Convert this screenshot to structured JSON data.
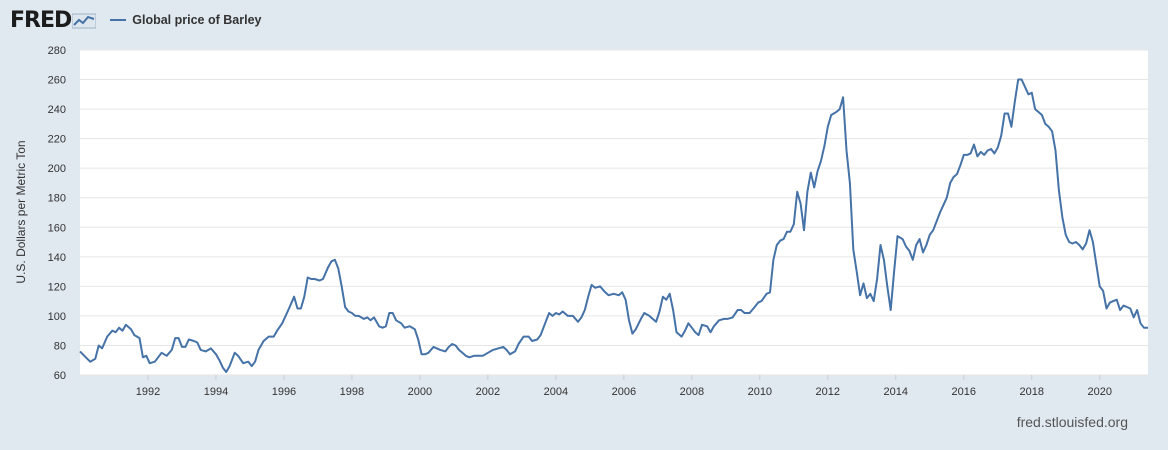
{
  "brand": {
    "logo_text": "FRED",
    "icon": "line-chart-icon"
  },
  "colors": {
    "series": "#4572a7",
    "plot_bg": "#ffffff",
    "page_bg": "#e1e9f0",
    "grid": "#e6e6e6"
  },
  "source_text": "fred.stlouisfed.org",
  "chart_data": {
    "type": "line",
    "title": "",
    "xlabel": "",
    "ylabel": "U.S. Dollars per Metric Ton",
    "xlim": [
      1990.0,
      2021.42
    ],
    "ylim": [
      60,
      280
    ],
    "yticks": [
      60,
      80,
      100,
      120,
      140,
      160,
      180,
      200,
      220,
      240,
      260,
      280
    ],
    "xticks": [
      1992,
      1994,
      1996,
      1998,
      2000,
      2002,
      2004,
      2006,
      2008,
      2010,
      2012,
      2014,
      2016,
      2018,
      2020
    ],
    "grid": true,
    "legend": "top-left",
    "series": [
      {
        "name": "Global price of Barley",
        "points": [
          [
            1990.0,
            76
          ],
          [
            1990.17,
            72
          ],
          [
            1990.3,
            69
          ],
          [
            1990.45,
            71
          ],
          [
            1990.55,
            80
          ],
          [
            1990.65,
            78
          ],
          [
            1990.8,
            86
          ],
          [
            1990.95,
            90
          ],
          [
            1991.05,
            89
          ],
          [
            1991.15,
            92
          ],
          [
            1991.25,
            90
          ],
          [
            1991.35,
            94
          ],
          [
            1991.5,
            91
          ],
          [
            1991.6,
            87
          ],
          [
            1991.75,
            85
          ],
          [
            1991.85,
            72
          ],
          [
            1991.95,
            73
          ],
          [
            1992.05,
            68
          ],
          [
            1992.2,
            69
          ],
          [
            1992.4,
            75
          ],
          [
            1992.55,
            73
          ],
          [
            1992.7,
            77
          ],
          [
            1992.8,
            85
          ],
          [
            1992.9,
            85
          ],
          [
            1993.0,
            79
          ],
          [
            1993.1,
            79
          ],
          [
            1993.2,
            84
          ],
          [
            1993.35,
            83
          ],
          [
            1993.45,
            82
          ],
          [
            1993.55,
            77
          ],
          [
            1993.7,
            76
          ],
          [
            1993.85,
            78
          ],
          [
            1994.0,
            74
          ],
          [
            1994.1,
            70
          ],
          [
            1994.2,
            65
          ],
          [
            1994.3,
            62
          ],
          [
            1994.4,
            66
          ],
          [
            1994.55,
            75
          ],
          [
            1994.65,
            73
          ],
          [
            1994.8,
            68
          ],
          [
            1994.95,
            69
          ],
          [
            1995.05,
            66
          ],
          [
            1995.15,
            69
          ],
          [
            1995.25,
            77
          ],
          [
            1995.4,
            83
          ],
          [
            1995.55,
            86
          ],
          [
            1995.7,
            86
          ],
          [
            1995.8,
            90
          ],
          [
            1995.95,
            95
          ],
          [
            1996.05,
            100
          ],
          [
            1996.15,
            105
          ],
          [
            1996.3,
            113
          ],
          [
            1996.4,
            105
          ],
          [
            1996.5,
            105
          ],
          [
            1996.6,
            113
          ],
          [
            1996.7,
            126
          ],
          [
            1996.8,
            125
          ],
          [
            1996.9,
            125
          ],
          [
            1997.05,
            124
          ],
          [
            1997.15,
            125
          ],
          [
            1997.3,
            133
          ],
          [
            1997.4,
            137
          ],
          [
            1997.5,
            138
          ],
          [
            1997.6,
            132
          ],
          [
            1997.7,
            120
          ],
          [
            1997.8,
            106
          ],
          [
            1997.9,
            103
          ],
          [
            1998.0,
            102
          ],
          [
            1998.1,
            100
          ],
          [
            1998.2,
            100
          ],
          [
            1998.35,
            98
          ],
          [
            1998.45,
            99
          ],
          [
            1998.55,
            97
          ],
          [
            1998.65,
            99
          ],
          [
            1998.8,
            93
          ],
          [
            1998.9,
            92
          ],
          [
            1999.0,
            93
          ],
          [
            1999.1,
            102
          ],
          [
            1999.2,
            102
          ],
          [
            1999.3,
            97
          ],
          [
            1999.45,
            95
          ],
          [
            1999.55,
            92
          ],
          [
            1999.7,
            93
          ],
          [
            1999.85,
            91
          ],
          [
            1999.95,
            84
          ],
          [
            2000.05,
            74
          ],
          [
            2000.15,
            74
          ],
          [
            2000.25,
            75
          ],
          [
            2000.4,
            79
          ],
          [
            2000.5,
            78
          ],
          [
            2000.6,
            77
          ],
          [
            2000.75,
            76
          ],
          [
            2000.85,
            79
          ],
          [
            2000.95,
            81
          ],
          [
            2001.05,
            80
          ],
          [
            2001.15,
            77
          ],
          [
            2001.25,
            75
          ],
          [
            2001.35,
            73
          ],
          [
            2001.45,
            72
          ],
          [
            2001.6,
            73
          ],
          [
            2001.75,
            73
          ],
          [
            2001.85,
            73
          ],
          [
            2002.0,
            75
          ],
          [
            2002.15,
            77
          ],
          [
            2002.3,
            78
          ],
          [
            2002.45,
            79
          ],
          [
            2002.55,
            77
          ],
          [
            2002.65,
            74
          ],
          [
            2002.8,
            76
          ],
          [
            2002.9,
            81
          ],
          [
            2003.05,
            86
          ],
          [
            2003.2,
            86
          ],
          [
            2003.3,
            83
          ],
          [
            2003.45,
            84
          ],
          [
            2003.55,
            87
          ],
          [
            2003.7,
            96
          ],
          [
            2003.8,
            102
          ],
          [
            2003.9,
            100
          ],
          [
            2004.0,
            102
          ],
          [
            2004.1,
            101
          ],
          [
            2004.2,
            103
          ],
          [
            2004.35,
            100
          ],
          [
            2004.5,
            100
          ],
          [
            2004.65,
            96
          ],
          [
            2004.75,
            99
          ],
          [
            2004.85,
            104
          ],
          [
            2004.95,
            113
          ],
          [
            2005.05,
            121
          ],
          [
            2005.15,
            119
          ],
          [
            2005.3,
            120
          ],
          [
            2005.45,
            116
          ],
          [
            2005.55,
            114
          ],
          [
            2005.7,
            115
          ],
          [
            2005.85,
            114
          ],
          [
            2005.95,
            116
          ],
          [
            2006.05,
            111
          ],
          [
            2006.15,
            97
          ],
          [
            2006.25,
            88
          ],
          [
            2006.35,
            91
          ],
          [
            2006.5,
            98
          ],
          [
            2006.6,
            102
          ],
          [
            2006.75,
            100
          ],
          [
            2006.85,
            98
          ],
          [
            2006.95,
            96
          ],
          [
            2007.05,
            103
          ],
          [
            2007.15,
            113
          ],
          [
            2007.25,
            111
          ],
          [
            2007.35,
            115
          ],
          [
            2007.45,
            104
          ],
          [
            2007.55,
            89
          ],
          [
            2007.7,
            86
          ],
          [
            2007.8,
            90
          ],
          [
            2007.9,
            95
          ],
          [
            2008.0,
            92
          ],
          [
            2008.1,
            89
          ],
          [
            2008.2,
            87
          ],
          [
            2008.3,
            94
          ],
          [
            2008.45,
            93
          ],
          [
            2008.55,
            89
          ],
          [
            2008.65,
            93
          ],
          [
            2008.8,
            97
          ],
          [
            2008.95,
            98
          ],
          [
            2009.05,
            98
          ],
          [
            2009.2,
            99
          ],
          [
            2009.35,
            104
          ],
          [
            2009.45,
            104
          ],
          [
            2009.55,
            102
          ],
          [
            2009.7,
            102
          ],
          [
            2009.85,
            106
          ],
          [
            2009.95,
            109
          ],
          [
            2010.05,
            110
          ],
          [
            2010.2,
            115
          ],
          [
            2010.3,
            116
          ],
          [
            2010.4,
            138
          ],
          [
            2010.5,
            148
          ],
          [
            2010.6,
            151
          ],
          [
            2010.7,
            152
          ],
          [
            2010.8,
            157
          ],
          [
            2010.9,
            157
          ],
          [
            2011.0,
            162
          ],
          [
            2011.1,
            184
          ],
          [
            2011.2,
            176
          ],
          [
            2011.3,
            158
          ],
          [
            2011.4,
            184
          ],
          [
            2011.5,
            197
          ],
          [
            2011.6,
            187
          ],
          [
            2011.7,
            198
          ],
          [
            2011.8,
            205
          ],
          [
            2011.9,
            215
          ],
          [
            2012.0,
            228
          ],
          [
            2012.1,
            236
          ],
          [
            2012.25,
            238
          ],
          [
            2012.35,
            240
          ],
          [
            2012.45,
            248
          ],
          [
            2012.55,
            212
          ],
          [
            2012.65,
            190
          ],
          [
            2012.75,
            145
          ],
          [
            2012.85,
            130
          ],
          [
            2012.95,
            114
          ],
          [
            2013.05,
            122
          ],
          [
            2013.15,
            112
          ],
          [
            2013.25,
            115
          ],
          [
            2013.35,
            110
          ],
          [
            2013.45,
            125
          ],
          [
            2013.55,
            148
          ],
          [
            2013.65,
            138
          ],
          [
            2013.75,
            120
          ],
          [
            2013.85,
            104
          ],
          [
            2013.95,
            130
          ],
          [
            2014.05,
            154
          ],
          [
            2014.2,
            152
          ],
          [
            2014.3,
            147
          ],
          [
            2014.4,
            144
          ],
          [
            2014.5,
            138
          ],
          [
            2014.6,
            148
          ],
          [
            2014.7,
            152
          ],
          [
            2014.8,
            143
          ],
          [
            2014.9,
            148
          ],
          [
            2015.0,
            155
          ],
          [
            2015.1,
            158
          ],
          [
            2015.2,
            164
          ],
          [
            2015.3,
            170
          ],
          [
            2015.4,
            175
          ],
          [
            2015.5,
            180
          ],
          [
            2015.6,
            190
          ],
          [
            2015.7,
            194
          ],
          [
            2015.8,
            196
          ],
          [
            2015.9,
            202
          ],
          [
            2016.0,
            209
          ],
          [
            2016.1,
            209
          ],
          [
            2016.2,
            210
          ],
          [
            2016.3,
            216
          ],
          [
            2016.4,
            208
          ],
          [
            2016.5,
            211
          ],
          [
            2016.6,
            209
          ],
          [
            2016.7,
            212
          ],
          [
            2016.8,
            213
          ],
          [
            2016.9,
            210
          ],
          [
            2017.0,
            214
          ],
          [
            2017.1,
            222
          ],
          [
            2017.2,
            237
          ],
          [
            2017.3,
            237
          ],
          [
            2017.4,
            228
          ],
          [
            2017.5,
            245
          ],
          [
            2017.6,
            260
          ],
          [
            2017.7,
            260
          ],
          [
            2017.8,
            255
          ],
          [
            2017.9,
            250
          ],
          [
            2018.0,
            251
          ],
          [
            2018.1,
            240
          ],
          [
            2018.2,
            238
          ],
          [
            2018.3,
            236
          ],
          [
            2018.4,
            230
          ],
          [
            2018.5,
            228
          ],
          [
            2018.6,
            225
          ],
          [
            2018.7,
            212
          ],
          [
            2018.8,
            185
          ],
          [
            2018.9,
            167
          ],
          [
            2019.0,
            155
          ],
          [
            2019.1,
            150
          ],
          [
            2019.2,
            149
          ],
          [
            2019.3,
            150
          ],
          [
            2019.4,
            148
          ],
          [
            2019.5,
            145
          ],
          [
            2019.6,
            149
          ],
          [
            2019.7,
            158
          ],
          [
            2019.8,
            150
          ],
          [
            2019.9,
            135
          ],
          [
            2020.0,
            120
          ],
          [
            2020.1,
            117
          ],
          [
            2020.2,
            105
          ],
          [
            2020.3,
            109
          ],
          [
            2020.4,
            110
          ],
          [
            2020.5,
            111
          ],
          [
            2020.6,
            104
          ],
          [
            2020.7,
            107
          ],
          [
            2020.8,
            106
          ],
          [
            2020.9,
            105
          ],
          [
            2021.0,
            99
          ],
          [
            2021.1,
            104
          ],
          [
            2021.2,
            95
          ],
          [
            2021.3,
            92
          ],
          [
            2021.42,
            92
          ]
        ]
      }
    ]
  }
}
